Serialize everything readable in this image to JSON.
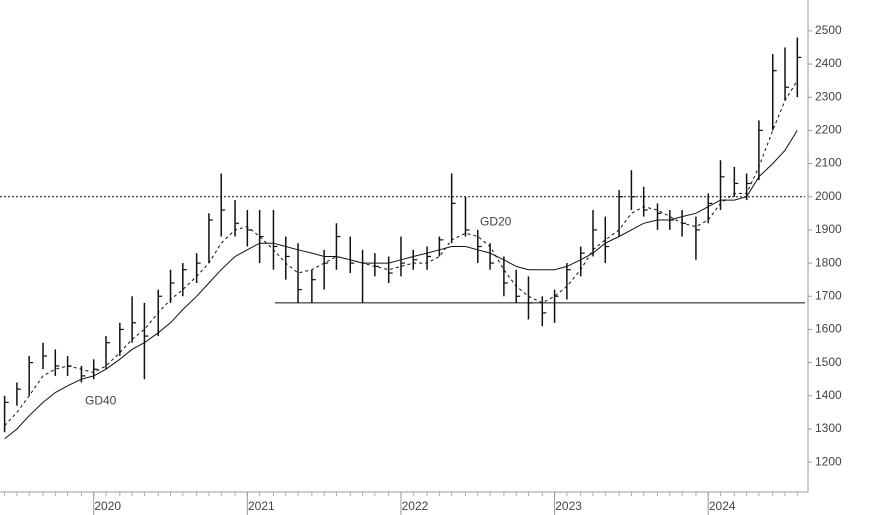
{
  "chart_data": {
    "type": "hlc",
    "x": [
      2019.42,
      2019.5,
      2019.58,
      2019.67,
      2019.75,
      2019.83,
      2019.92,
      2020.0,
      2020.08,
      2020.17,
      2020.25,
      2020.33,
      2020.42,
      2020.5,
      2020.58,
      2020.67,
      2020.75,
      2020.83,
      2020.92,
      2021.0,
      2021.08,
      2021.17,
      2021.25,
      2021.33,
      2021.42,
      2021.5,
      2021.58,
      2021.67,
      2021.75,
      2021.83,
      2021.92,
      2022.0,
      2022.08,
      2022.17,
      2022.25,
      2022.33,
      2022.42,
      2022.5,
      2022.58,
      2022.67,
      2022.75,
      2022.83,
      2022.92,
      2023.0,
      2023.08,
      2023.17,
      2023.25,
      2023.33,
      2023.42,
      2023.5,
      2023.58,
      2023.67,
      2023.75,
      2023.83,
      2023.92,
      2024.0,
      2024.08,
      2024.17,
      2024.25,
      2024.33,
      2024.42,
      2024.5,
      2024.58
    ],
    "high": [
      1400,
      1440,
      1520,
      1560,
      1540,
      1520,
      1490,
      1510,
      1580,
      1620,
      1700,
      1680,
      1720,
      1780,
      1800,
      1830,
      1950,
      2070,
      1990,
      1960,
      1960,
      1960,
      1880,
      1860,
      1780,
      1840,
      1920,
      1880,
      1840,
      1830,
      1820,
      1880,
      1840,
      1850,
      1880,
      2070,
      2000,
      1900,
      1860,
      1820,
      1780,
      1760,
      1700,
      1720,
      1800,
      1850,
      1960,
      1940,
      2020,
      2080,
      2030,
      1980,
      1960,
      1960,
      1940,
      2010,
      2110,
      2090,
      2070,
      2230,
      2430,
      2450,
      2480
    ],
    "low": [
      1290,
      1370,
      1400,
      1480,
      1460,
      1460,
      1440,
      1450,
      1480,
      1520,
      1560,
      1450,
      1580,
      1680,
      1700,
      1740,
      1800,
      1880,
      1880,
      1850,
      1800,
      1780,
      1750,
      1680,
      1680,
      1720,
      1780,
      1770,
      1680,
      1760,
      1740,
      1760,
      1780,
      1780,
      1820,
      1860,
      1880,
      1800,
      1780,
      1700,
      1680,
      1630,
      1610,
      1620,
      1690,
      1760,
      1820,
      1800,
      1880,
      1960,
      1940,
      1900,
      1900,
      1880,
      1810,
      1920,
      1960,
      2000,
      1990,
      2050,
      2200,
      2290,
      2300
    ],
    "close": [
      1380,
      1420,
      1500,
      1520,
      1490,
      1490,
      1460,
      1480,
      1560,
      1600,
      1620,
      1580,
      1700,
      1740,
      1780,
      1800,
      1930,
      1960,
      1920,
      1900,
      1880,
      1850,
      1820,
      1720,
      1750,
      1800,
      1880,
      1800,
      1800,
      1790,
      1770,
      1800,
      1810,
      1820,
      1870,
      1980,
      1900,
      1850,
      1800,
      1740,
      1700,
      1680,
      1650,
      1700,
      1780,
      1830,
      1900,
      1850,
      2000,
      2000,
      1960,
      1950,
      1930,
      1920,
      1900,
      1980,
      2060,
      2040,
      2040,
      2200,
      2380,
      2330,
      2420
    ],
    "lines": [
      {
        "name": "GD20",
        "dashed": true,
        "values": [
          1310,
          1350,
          1400,
          1460,
          1480,
          1490,
          1480,
          1470,
          1490,
          1530,
          1570,
          1600,
          1650,
          1690,
          1720,
          1760,
          1800,
          1860,
          1900,
          1910,
          1880,
          1840,
          1800,
          1770,
          1780,
          1800,
          1820,
          1810,
          1800,
          1790,
          1780,
          1790,
          1800,
          1800,
          1820,
          1870,
          1890,
          1880,
          1850,
          1780,
          1730,
          1700,
          1680,
          1700,
          1730,
          1780,
          1840,
          1870,
          1900,
          1950,
          1970,
          1960,
          1940,
          1920,
          1910,
          1930,
          1980,
          2010,
          2010,
          2090,
          2200,
          2290,
          2350
        ]
      },
      {
        "name": "GD40",
        "dashed": false,
        "values": [
          1270,
          1300,
          1340,
          1380,
          1410,
          1430,
          1450,
          1460,
          1480,
          1510,
          1540,
          1560,
          1590,
          1620,
          1660,
          1700,
          1740,
          1780,
          1820,
          1840,
          1860,
          1860,
          1850,
          1840,
          1830,
          1820,
          1820,
          1810,
          1800,
          1800,
          1800,
          1810,
          1820,
          1830,
          1840,
          1850,
          1850,
          1840,
          1830,
          1810,
          1790,
          1780,
          1780,
          1780,
          1790,
          1810,
          1830,
          1860,
          1880,
          1900,
          1920,
          1930,
          1930,
          1940,
          1950,
          1970,
          1990,
          1990,
          2000,
          2060,
          2100,
          2140,
          2200
        ]
      }
    ],
    "hlines": [
      {
        "value": 2000,
        "dotted": true
      },
      {
        "value": 1680,
        "dotted": false,
        "from": 2021.18
      }
    ],
    "xlim": [
      2019.39,
      2024.63
    ],
    "xticks": [
      2020,
      2021,
      2022,
      2023,
      2024
    ],
    "ylim": [
      1110,
      2593
    ],
    "yticks": [
      1200,
      1300,
      1400,
      1500,
      1600,
      1700,
      1800,
      1900,
      2000,
      2100,
      2200,
      2300,
      2400,
      2500
    ],
    "color": "#111111"
  }
}
